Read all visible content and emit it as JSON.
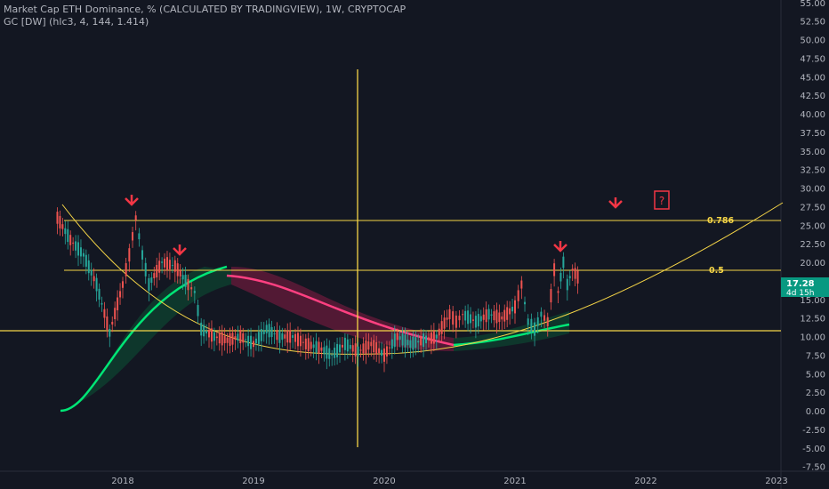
{
  "header": {
    "title": "Market Cap ETH Dominance, % (CALCULATED BY TRADINGVIEW), 1W, CRYPTOCAP",
    "indicator": "GC [DW] (hlc3, 4, 144, 1.414)"
  },
  "price_badge": {
    "value": "17.28",
    "countdown": "4d 15h"
  },
  "annotations": {
    "question_mark": "?"
  },
  "colors": {
    "background": "#131722",
    "up": "#26a69a",
    "down": "#ef5350",
    "guide": "#f5d547",
    "arrow": "#f23645",
    "green_band": "#00e676",
    "pink_band": "#e91e63"
  },
  "chart_data": {
    "type": "candlestick",
    "title": "Market Cap ETH Dominance, % (CALCULATED BY TRADINGVIEW), 1W, CRYPTOCAP",
    "x_axis": {
      "ticks": [
        "2018",
        "2019",
        "2020",
        "2021",
        "2022",
        "2023"
      ],
      "range": [
        "2017-06",
        "2023-03"
      ]
    },
    "y_axis": {
      "ticks": [
        "55.00",
        "52.50",
        "50.00",
        "47.50",
        "45.00",
        "42.50",
        "40.00",
        "37.50",
        "35.00",
        "32.50",
        "30.00",
        "27.50",
        "25.00",
        "22.50",
        "20.00",
        "17.50",
        "15.00",
        "12.50",
        "10.00",
        "7.50",
        "5.00",
        "2.50",
        "0.00",
        "-2.50",
        "-5.00",
        "-7.50"
      ],
      "range": [
        -9,
        56
      ],
      "position": "right"
    },
    "last_value": 17.28,
    "series": [
      {
        "name": "ETH Dominance",
        "x": [
          2017.5,
          2017.6,
          2017.7,
          2017.8,
          2017.9,
          2018.0,
          2018.05,
          2018.1,
          2018.15,
          2018.2,
          2018.3,
          2018.4,
          2018.5,
          2018.55,
          2018.6,
          2018.7,
          2018.8,
          2018.9,
          2019.0,
          2019.1,
          2019.2,
          2019.3,
          2019.4,
          2019.5,
          2019.6,
          2019.7,
          2019.8,
          2019.9,
          2020.0,
          2020.1,
          2020.2,
          2020.3,
          2020.4,
          2020.5,
          2020.55,
          2020.6,
          2020.7,
          2020.8,
          2020.9,
          2021.0,
          2021.05,
          2021.1,
          2021.15,
          2021.2,
          2021.25,
          2021.3,
          2021.33,
          2021.37,
          2021.4,
          2021.44,
          2021.48,
          2021.5
        ],
        "y": [
          26,
          23,
          21,
          17,
          10.5,
          17,
          21,
          26,
          21,
          17,
          20,
          19.5,
          17,
          16,
          11,
          10,
          9.5,
          10,
          9,
          11,
          10,
          10,
          9,
          8.5,
          7.5,
          9,
          8,
          9,
          7.5,
          10,
          9,
          9.5,
          10,
          13,
          12,
          13,
          12,
          13,
          12.5,
          14,
          17,
          12,
          11,
          13,
          12,
          19,
          16,
          20,
          17,
          19,
          18,
          17.5
        ]
      },
      {
        "name": "Trend Line",
        "x": [
          2017.5,
          2018.5,
          2019.5,
          2020.5,
          2021.5,
          2022.5,
          2023.1
        ],
        "y": [
          27,
          15,
          8.5,
          8,
          13,
          22,
          28
        ]
      }
    ],
    "annotations": {
      "fib_levels": [
        {
          "label": "0.786",
          "value": 25.7
        },
        {
          "label": "0.5",
          "value": 19
        }
      ],
      "support": 10.7,
      "vertical_line": "2019-10",
      "arrows": "down"
    },
    "legend": "none",
    "grid": false
  }
}
